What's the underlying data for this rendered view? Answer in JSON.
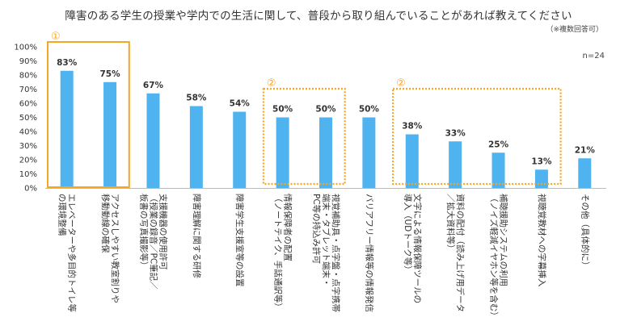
{
  "chart_data": {
    "type": "bar",
    "title": "障害のある学生の授業や学内での生活に関して、普段から取り組んでいることがあれば教えてください",
    "note": "（※複数回答可）",
    "n_label": "n=24",
    "ylim": [
      0,
      100
    ],
    "yticks": [
      "0%",
      "10%",
      "20%",
      "30%",
      "40%",
      "50%",
      "60%",
      "70%",
      "80%",
      "90%",
      "100%"
    ],
    "categories": [
      "エレベーターや多目的トイレ等の環境整備",
      "アクセスしやすい教室割りや移動動線の確保",
      "支援機器の使用許可（授業の録音／PC筆記／板書の写真撮影等）",
      "障害理解に関する研修",
      "障害学生支援室等の設置",
      "情報保障者の配置（ノートテイク、手話通訳等）",
      "視覚補助具・点字盤・点字携帯端末・タブレット端末・PC等の持込み許可",
      "バリアフリー情報等の情報発信",
      "文字による情報保障ツールの導入（UDトーク等）",
      "資料の配付（読み上げ用データ／拡大資料等）",
      "補聴援助システムの利用（ノイズ軽減イヤホン等を含む）",
      "視聴覚教材への字幕挿入",
      "その他（具体的に）"
    ],
    "label_lines": [
      [
        "エレベーターや多目的トイレ等",
        "の環境整備"
      ],
      [
        "アクセスしやすい教室割りや",
        "移動動線の確保"
      ],
      [
        "支援機器の使用許可",
        "（授業の録音／PC筆記／",
        "板書の写真撮影等）"
      ],
      [
        "障害理解に関する研修"
      ],
      [
        "障害学生支援室等の設置"
      ],
      [
        "情報保障者の配置",
        "（ノートテイク、手話通訳等）"
      ],
      [
        "視覚補助具・点字盤・点字携帯",
        "端末・タブレット端末・",
        "PC等の持込み許可"
      ],
      [
        "バリアフリー情報等の情報発信"
      ],
      [
        "文字による情報保障ツールの",
        "導入（UDトーク等）"
      ],
      [
        "資料の配付（読み上げ用データ",
        "／拡大資料等）"
      ],
      [
        "補聴援助システムの利用",
        "（ノイズ軽減イヤホン等を含む）"
      ],
      [
        "視聴覚教材への字幕挿入"
      ],
      [
        "その他（具体的に）"
      ]
    ],
    "values": [
      83,
      75,
      67,
      58,
      54,
      50,
      50,
      50,
      38,
      33,
      25,
      13,
      21
    ],
    "value_labels": [
      "83%",
      "75%",
      "67%",
      "58%",
      "54%",
      "50%",
      "50%",
      "50%",
      "38%",
      "33%",
      "25%",
      "13%",
      "21%"
    ],
    "groups": [
      {
        "label": "①",
        "style": "solid",
        "from": 0,
        "to": 1
      },
      {
        "label": "②",
        "style": "dotted",
        "from": 5,
        "to": 6
      },
      {
        "label": "②",
        "style": "dotted",
        "from": 8,
        "to": 11
      }
    ],
    "colors": {
      "bar": "#4fb3f0",
      "highlight": "#f5a623",
      "axis": "#bbbbbb",
      "text": "#333333"
    }
  }
}
